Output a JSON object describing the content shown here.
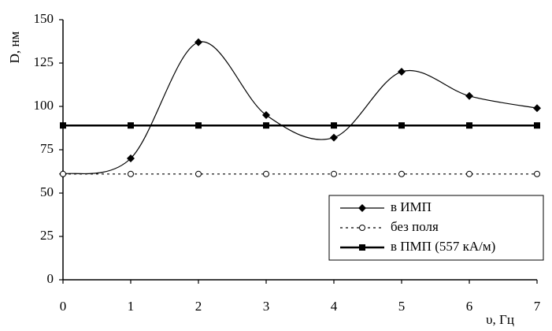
{
  "chart_data": {
    "type": "line",
    "x": [
      0,
      1,
      2,
      3,
      4,
      5,
      6,
      7
    ],
    "xlim": [
      0,
      7
    ],
    "xticks": [
      0,
      1,
      2,
      3,
      4,
      5,
      6,
      7
    ],
    "ylim": [
      0,
      150
    ],
    "yticks": [
      0,
      25,
      50,
      75,
      100,
      125,
      150
    ],
    "xlabel": "υ, Гц",
    "ylabel": "D,  нм",
    "legend": "lower right",
    "series": [
      {
        "name": "в ИМП",
        "color": "#000000",
        "marker": "diamond",
        "line_style": "solid",
        "line_width": 1.2,
        "smooth": true,
        "values": [
          61,
          70,
          137,
          95,
          82,
          120,
          106,
          99
        ]
      },
      {
        "name": "без поля",
        "color": "#000000",
        "marker": "circle",
        "line_style": "dotted",
        "line_width": 1.2,
        "smooth": false,
        "values": [
          61,
          61,
          61,
          61,
          61,
          61,
          61,
          61
        ]
      },
      {
        "name": "в ПМП (557 кА/м)",
        "color": "#000000",
        "marker": "square",
        "line_style": "solid",
        "line_width": 2.5,
        "smooth": false,
        "values": [
          89,
          89,
          89,
          89,
          89,
          89,
          89,
          89
        ]
      }
    ]
  }
}
